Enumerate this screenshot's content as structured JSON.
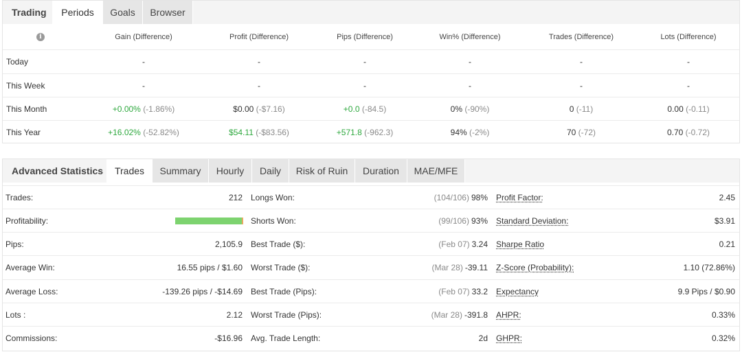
{
  "periods_panel": {
    "tabs": [
      {
        "label": "Trading",
        "type": "title"
      },
      {
        "label": "Periods",
        "type": "active"
      },
      {
        "label": "Goals",
        "type": "inactive"
      },
      {
        "label": "Browser",
        "type": "inactive"
      }
    ],
    "columns": [
      "Gain (Difference)",
      "Profit (Difference)",
      "Pips (Difference)",
      "Win% (Difference)",
      "Trades (Difference)",
      "Lots (Difference)"
    ],
    "info_icon": "info-icon",
    "rows": [
      {
        "label": "Today",
        "cells": [
          {
            "v": "-",
            "d": "",
            "pos": false
          },
          {
            "v": "-",
            "d": "",
            "pos": false
          },
          {
            "v": "-",
            "d": "",
            "pos": false
          },
          {
            "v": "-",
            "d": "",
            "pos": false
          },
          {
            "v": "-",
            "d": "",
            "pos": false
          },
          {
            "v": "-",
            "d": "",
            "pos": false
          }
        ]
      },
      {
        "label": "This Week",
        "cells": [
          {
            "v": "-",
            "d": "",
            "pos": false
          },
          {
            "v": "-",
            "d": "",
            "pos": false
          },
          {
            "v": "-",
            "d": "",
            "pos": false
          },
          {
            "v": "-",
            "d": "",
            "pos": false
          },
          {
            "v": "-",
            "d": "",
            "pos": false
          },
          {
            "v": "-",
            "d": "",
            "pos": false
          }
        ]
      },
      {
        "label": "This Month",
        "cells": [
          {
            "v": "+0.00%",
            "d": "(-1.86%)",
            "pos": true
          },
          {
            "v": "$0.00",
            "d": "(-$7.16)",
            "pos": false
          },
          {
            "v": "+0.0",
            "d": "(-84.5)",
            "pos": true
          },
          {
            "v": "0%",
            "d": "(-90%)",
            "pos": false
          },
          {
            "v": "0",
            "d": "(-11)",
            "pos": false
          },
          {
            "v": "0.00",
            "d": "(-0.11)",
            "pos": false
          }
        ]
      },
      {
        "label": "This Year",
        "cells": [
          {
            "v": "+16.02%",
            "d": "(-52.82%)",
            "pos": true
          },
          {
            "v": "$54.11",
            "d": "(-$83.56)",
            "pos": true
          },
          {
            "v": "+571.8",
            "d": "(-962.3)",
            "pos": true
          },
          {
            "v": "94%",
            "d": "(-2%)",
            "pos": false
          },
          {
            "v": "70",
            "d": "(-72)",
            "pos": false
          },
          {
            "v": "0.70",
            "d": "(-0.72)",
            "pos": false
          }
        ]
      }
    ]
  },
  "stats_panel": {
    "title": "Advanced Statistics",
    "tabs": [
      {
        "label": "Trades",
        "active": true
      },
      {
        "label": "Summary",
        "active": false
      },
      {
        "label": "Hourly",
        "active": false
      },
      {
        "label": "Daily",
        "active": false
      },
      {
        "label": "Risk of Ruin",
        "active": false
      },
      {
        "label": "Duration",
        "active": false
      },
      {
        "label": "MAE/MFE",
        "active": false
      }
    ],
    "col1": [
      {
        "label": "Trades:",
        "value": "212"
      },
      {
        "label": "Profitability:",
        "value": "",
        "profitability": 0.98
      },
      {
        "label": "Pips:",
        "value": "2,105.9"
      },
      {
        "label": "Average Win:",
        "value": "16.55 pips / $1.60"
      },
      {
        "label": "Average Loss:",
        "value": "-139.26 pips / -$14.69"
      },
      {
        "label": "Lots :",
        "value": "2.12"
      },
      {
        "label": "Commissions:",
        "value": "-$16.96"
      }
    ],
    "col2": [
      {
        "label": "Longs Won:",
        "extra": "(104/106)",
        "value": "98%"
      },
      {
        "label": "Shorts Won:",
        "extra": "(99/106)",
        "value": "93%"
      },
      {
        "label": "Best Trade ($):",
        "extra": "(Feb 07)",
        "value": "3.24"
      },
      {
        "label": "Worst Trade ($):",
        "extra": "(Mar 28)",
        "value": "-39.11"
      },
      {
        "label": "Best Trade (Pips):",
        "extra": "(Feb 07)",
        "value": "33.2"
      },
      {
        "label": "Worst Trade (Pips):",
        "extra": "(Mar 28)",
        "value": "-391.8"
      },
      {
        "label": "Avg. Trade Length:",
        "extra": "",
        "value": "2d"
      }
    ],
    "col3": [
      {
        "label": "Profit Factor:",
        "value": "2.45"
      },
      {
        "label": "Standard Deviation:",
        "value": "$3.91"
      },
      {
        "label": "Sharpe Ratio",
        "value": "0.21"
      },
      {
        "label": "Z-Score (Probability):",
        "value": "1.10 (72.86%)"
      },
      {
        "label": "Expectancy",
        "value": "9.9 Pips / $0.90"
      },
      {
        "label": "AHPR:",
        "value": "0.33%"
      },
      {
        "label": "GHPR:",
        "value": "0.32%"
      }
    ]
  }
}
